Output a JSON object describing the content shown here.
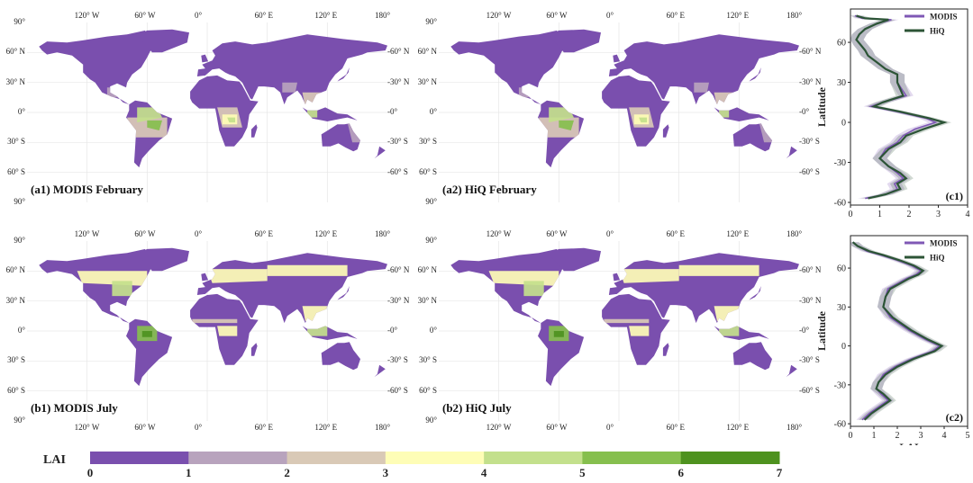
{
  "maps": [
    {
      "id": "a1",
      "label": "(a1) MODIS  February",
      "month": "February"
    },
    {
      "id": "a2",
      "label": "(a2) HiQ  February",
      "month": "February"
    },
    {
      "id": "b1",
      "label": "(b1) MODIS  July",
      "month": "July"
    },
    {
      "id": "b2",
      "label": "(b2) HiQ  July",
      "month": "July"
    }
  ],
  "map_axes": {
    "top_lon_ticks": [
      "120° W",
      "60° W",
      "0°",
      "60° E",
      "120° E",
      "180°"
    ],
    "bottom_lon_ticks": [
      "120° W",
      "60° W",
      "0°",
      "60° E",
      "120° E",
      "180°"
    ],
    "left_lat_ticks": [
      "90°",
      "60° N",
      "30° N",
      "0°",
      "30° S",
      "60° S",
      "90°"
    ],
    "right_lat_ticks": [
      "60° N",
      "30° N",
      "0°",
      "30° S",
      "60° S"
    ]
  },
  "colorbar": {
    "label": "LAI",
    "ticks": [
      "0",
      "1",
      "2",
      "3",
      "4",
      "5",
      "6",
      "7"
    ],
    "colors": [
      "#7a4fae",
      "#b8a3bd",
      "#d9c9b6",
      "#fefdb6",
      "#c3e08c",
      "#86bf4e",
      "#4e921f"
    ]
  },
  "map_palette": {
    "ocean": "#ffffff",
    "grid": "#e6e6e6"
  },
  "chart_data": [
    {
      "type": "line",
      "panel_label": "(c1)",
      "xlabel": "",
      "ylabel": "Latitude",
      "xlim": [
        0,
        4
      ],
      "ylim": [
        -62,
        85
      ],
      "xticks": [
        "0",
        "1",
        "2",
        "3",
        "4"
      ],
      "yticks": [
        "-60",
        "-30",
        "0",
        "30",
        "60"
      ],
      "legend_position": "top-right",
      "series": [
        {
          "name": "MODIS",
          "color": "#7f58b5",
          "x": [
            0.15,
            0.4,
            1.4,
            0.9,
            0.5,
            0.3,
            0.2,
            0.35,
            0.5,
            0.6,
            0.9,
            1.2,
            1.6,
            1.6,
            1.9,
            1.1,
            0.7,
            1.6,
            2.6,
            2.9,
            2.2,
            1.8,
            1.6,
            1.2,
            1.0,
            1.3,
            1.6,
            1.8,
            1.5,
            1.6,
            1.2,
            0.5
          ],
          "y": [
            80,
            78,
            77,
            74,
            70,
            66,
            62,
            58,
            54,
            50,
            45,
            40,
            36,
            30,
            20,
            15,
            12,
            8,
            3,
            0,
            -5,
            -10,
            -15,
            -20,
            -27,
            -33,
            -38,
            -42,
            -46,
            -50,
            -54,
            -57
          ]
        },
        {
          "name": "HiQ",
          "color": "#2c5436",
          "x": [
            0.2,
            0.5,
            1.3,
            0.9,
            0.5,
            0.3,
            0.2,
            0.35,
            0.5,
            0.6,
            0.9,
            1.2,
            1.6,
            1.6,
            1.8,
            1.1,
            0.8,
            1.7,
            2.7,
            3.2,
            2.5,
            1.9,
            1.7,
            1.3,
            1.0,
            1.3,
            1.7,
            1.9,
            1.6,
            1.7,
            1.2,
            0.6
          ],
          "y": [
            80,
            78,
            77,
            74,
            70,
            66,
            62,
            58,
            54,
            50,
            45,
            40,
            36,
            30,
            20,
            15,
            12,
            8,
            3,
            0,
            -5,
            -10,
            -15,
            -20,
            -27,
            -33,
            -38,
            -42,
            -46,
            -50,
            -54,
            -57
          ]
        }
      ]
    },
    {
      "type": "line",
      "panel_label": "(c2)",
      "xlabel": "LAI",
      "ylabel": "Latitude",
      "xlim": [
        0,
        5
      ],
      "ylim": [
        -62,
        85
      ],
      "xticks": [
        "0",
        "1",
        "2",
        "3",
        "4",
        "5"
      ],
      "yticks": [
        "-60",
        "-30",
        "0",
        "30",
        "60"
      ],
      "legend_position": "top-right",
      "series": [
        {
          "name": "MODIS",
          "color": "#7f58b5",
          "x": [
            0.1,
            0.3,
            0.7,
            1.3,
            2.0,
            2.6,
            3.0,
            2.8,
            2.4,
            2.0,
            1.6,
            1.5,
            1.4,
            1.7,
            2.5,
            3.2,
            3.8,
            3.5,
            2.6,
            1.9,
            1.4,
            1.2,
            1.1,
            1.3,
            1.6,
            1.2,
            0.8,
            0.5
          ],
          "y": [
            80,
            77,
            73,
            70,
            66,
            62,
            58,
            55,
            52,
            48,
            44,
            38,
            30,
            22,
            12,
            5,
            0,
            -4,
            -10,
            -16,
            -22,
            -28,
            -33,
            -37,
            -42,
            -47,
            -52,
            -57
          ]
        },
        {
          "name": "HiQ",
          "color": "#2c5436",
          "x": [
            0.1,
            0.3,
            0.8,
            1.4,
            2.1,
            2.7,
            3.1,
            2.9,
            2.5,
            2.1,
            1.7,
            1.5,
            1.4,
            1.8,
            2.6,
            3.3,
            3.9,
            3.6,
            2.7,
            2.0,
            1.5,
            1.2,
            1.1,
            1.4,
            1.7,
            1.3,
            0.9,
            0.6
          ],
          "y": [
            80,
            77,
            73,
            70,
            66,
            62,
            58,
            55,
            52,
            48,
            44,
            38,
            30,
            22,
            12,
            5,
            0,
            -4,
            -10,
            -16,
            -22,
            -28,
            -33,
            -37,
            -42,
            -47,
            -52,
            -57
          ]
        }
      ]
    }
  ]
}
